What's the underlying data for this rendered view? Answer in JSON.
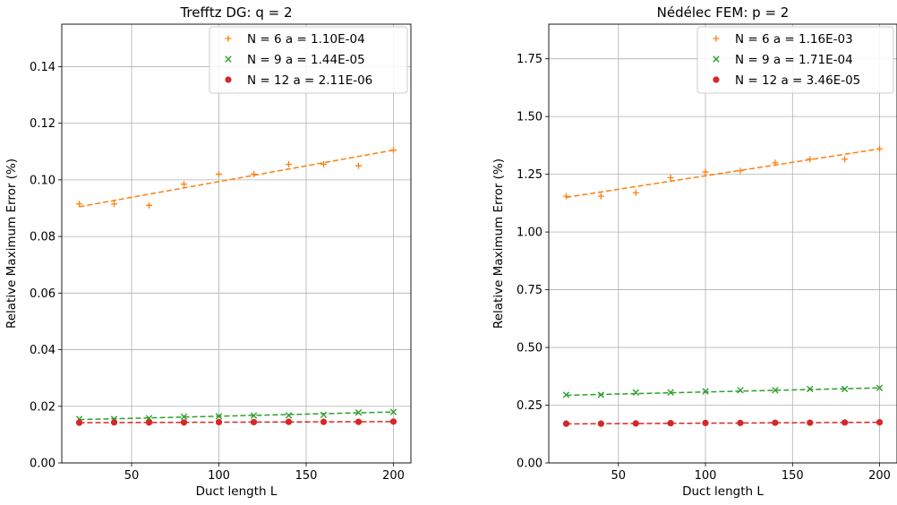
{
  "chart_data": [
    {
      "type": "scatter",
      "title": "Trefftz DG: q = 2",
      "xlabel": "Duct length L",
      "ylabel": "Relative Maximum Error (%)",
      "xlim": [
        10,
        210
      ],
      "ylim": [
        0,
        0.155
      ],
      "xticks": [
        50,
        100,
        150,
        200
      ],
      "xtick_labels": [
        "50",
        "100",
        "150",
        "200"
      ],
      "yticks": [
        0,
        0.02,
        0.04,
        0.06,
        0.08,
        0.1,
        0.12,
        0.14
      ],
      "ytick_labels": [
        "0.00",
        "0.02",
        "0.04",
        "0.06",
        "0.08",
        "0.10",
        "0.12",
        "0.14"
      ],
      "grid": true,
      "legend_position": "top-right",
      "x": [
        20,
        40,
        60,
        80,
        100,
        120,
        140,
        160,
        180,
        200
      ],
      "series": [
        {
          "name": "N = 6   a = 1.10E-04",
          "color": "#ff7f0e",
          "marker": "plus",
          "values": [
            0.0915,
            0.0915,
            0.091,
            0.0985,
            0.102,
            0.102,
            0.1055,
            0.1055,
            0.105,
            0.1105
          ],
          "fit": [
            0.0905,
            0.1105
          ]
        },
        {
          "name": "N = 9   a = 1.44E-05",
          "color": "#2ca02c",
          "marker": "x",
          "values": [
            0.0155,
            0.0155,
            0.0158,
            0.0163,
            0.0165,
            0.0167,
            0.0168,
            0.017,
            0.0178,
            0.018
          ],
          "fit": [
            0.0153,
            0.018
          ]
        },
        {
          "name": "N = 12   a = 2.11E-06",
          "color": "#d62728",
          "marker": "circle",
          "values": [
            0.0142,
            0.0143,
            0.0143,
            0.0143,
            0.0144,
            0.0144,
            0.0145,
            0.0145,
            0.0145,
            0.0146
          ],
          "fit": [
            0.0142,
            0.0146
          ]
        }
      ]
    },
    {
      "type": "scatter",
      "title": "Nédélec FEM: p = 2",
      "xlabel": "Duct length L",
      "ylabel": "Relative Maximum Error (%)",
      "xlim": [
        10,
        210
      ],
      "ylim": [
        0,
        1.9
      ],
      "xticks": [
        50,
        100,
        150,
        200
      ],
      "xtick_labels": [
        "50",
        "100",
        "150",
        "200"
      ],
      "yticks": [
        0,
        0.25,
        0.5,
        0.75,
        1.0,
        1.25,
        1.5,
        1.75
      ],
      "ytick_labels": [
        "0.00",
        "0.25",
        "0.50",
        "0.75",
        "1.00",
        "1.25",
        "1.50",
        "1.75"
      ],
      "grid": true,
      "legend_position": "top-right",
      "x": [
        20,
        40,
        60,
        80,
        100,
        120,
        140,
        160,
        180,
        200
      ],
      "series": [
        {
          "name": "N = 6   a = 1.16E-03",
          "color": "#ff7f0e",
          "marker": "plus",
          "values": [
            1.155,
            1.155,
            1.17,
            1.235,
            1.26,
            1.265,
            1.3,
            1.315,
            1.315,
            1.36
          ],
          "fit": [
            1.15,
            1.36
          ]
        },
        {
          "name": "N = 9   a = 1.71E-04",
          "color": "#2ca02c",
          "marker": "x",
          "values": [
            0.295,
            0.295,
            0.305,
            0.305,
            0.31,
            0.315,
            0.315,
            0.32,
            0.32,
            0.325
          ],
          "fit": [
            0.293,
            0.325
          ]
        },
        {
          "name": "N = 12   a = 3.46E-05",
          "color": "#d62728",
          "marker": "circle",
          "values": [
            0.17,
            0.17,
            0.171,
            0.172,
            0.173,
            0.173,
            0.174,
            0.174,
            0.175,
            0.176
          ],
          "fit": [
            0.169,
            0.176
          ]
        }
      ]
    }
  ]
}
